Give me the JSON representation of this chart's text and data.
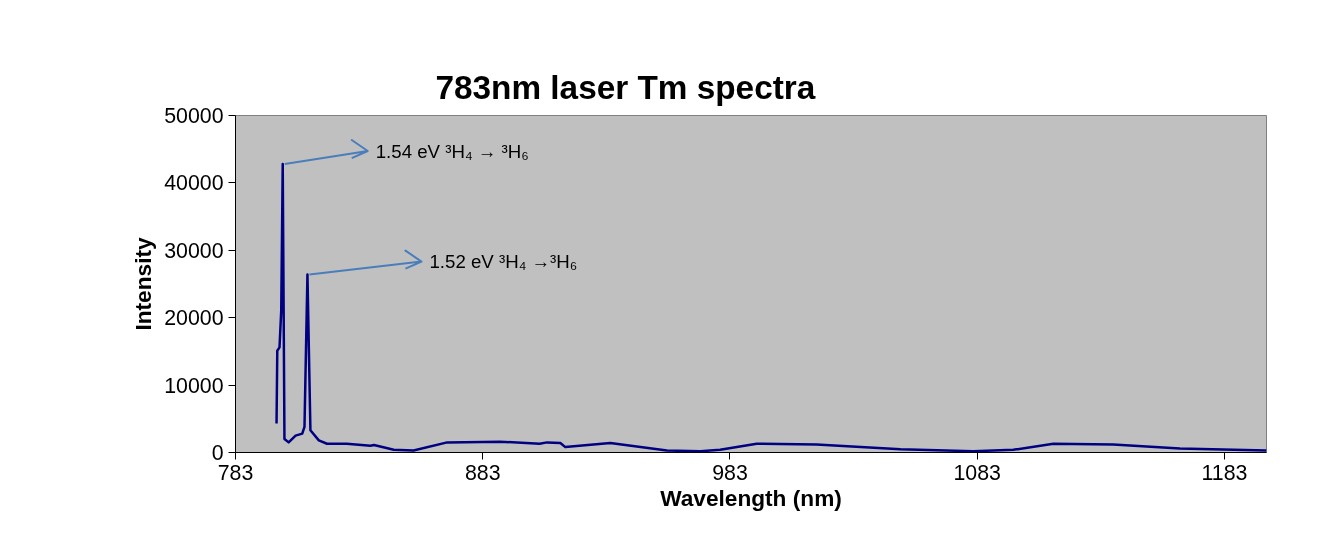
{
  "chart_data": {
    "type": "line",
    "title": "783nm laser Tm spectra",
    "xlabel": "Wavelength (nm)",
    "ylabel": "Intensity",
    "series": [
      {
        "color": "#000080",
        "x": [
          799.6,
          799.9,
          800.8,
          801.5,
          802.1,
          802.8,
          804.5,
          807.3,
          810,
          810.9,
          812.1,
          813.3,
          816.7,
          820,
          828,
          837.6,
          839,
          847,
          855,
          868.6,
          890,
          906,
          909,
          914.4,
          916.4,
          934.6,
          957.5,
          971,
          979,
          993.8,
          1018,
          1052,
          1081.4,
          1097.6,
          1113.8,
          1138,
          1165,
          1200
        ],
        "values": [
          4300,
          15100,
          15600,
          21100,
          42800,
          2000,
          1500,
          2500,
          2800,
          3800,
          26400,
          3300,
          1800,
          1300,
          1300,
          1000,
          1100,
          400,
          300,
          1500,
          1600,
          1300,
          1500,
          1400,
          800,
          1400,
          300,
          200,
          400,
          1300,
          1200,
          500,
          200,
          400,
          1300,
          1200,
          600,
          300
        ]
      }
    ],
    "annotations": [
      {
        "text": "1.54 eV  ³H₄ →  ³H₆",
        "x": 802.1,
        "y": 42800
      },
      {
        "text": "1.52 eV  ³H₄ →³H₆",
        "x": 812.1,
        "y": 26400
      }
    ],
    "xlim": [
      783,
      1200
    ],
    "xticks": [
      783,
      883,
      983,
      1083,
      1183
    ],
    "ylim": [
      0,
      50000
    ],
    "yticks": [
      0,
      10000,
      20000,
      30000,
      40000,
      50000
    ],
    "grid": false,
    "marker": "none",
    "line_style": "solid"
  }
}
